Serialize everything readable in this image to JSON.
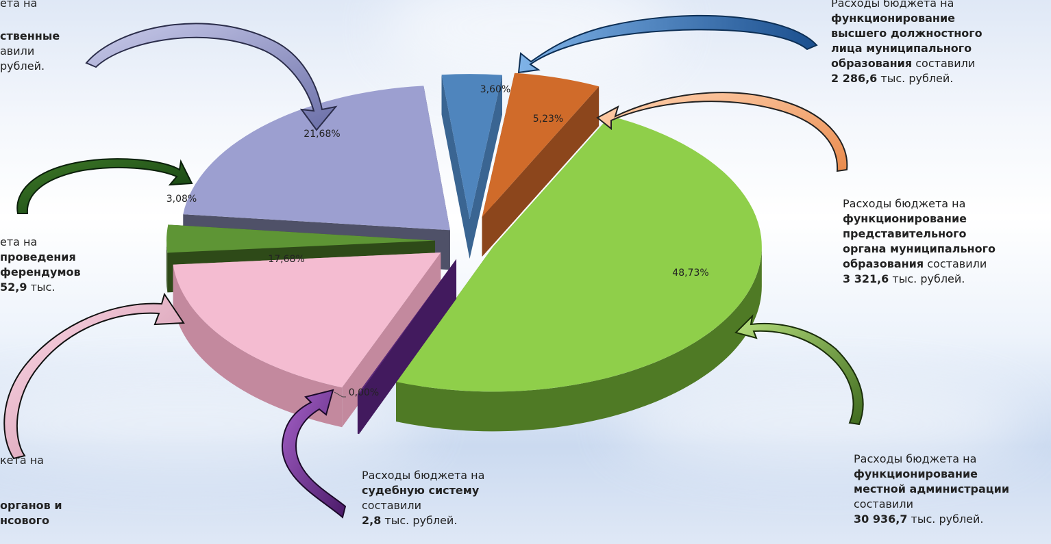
{
  "chart_data": {
    "type": "pie",
    "variant": "3d-exploded",
    "slices": [
      {
        "label": "3,60%",
        "value": 3.6,
        "color": "#4f85bd",
        "side": "#3a6592"
      },
      {
        "label": "5,23%",
        "value": 5.23,
        "color": "#d06b2a",
        "side": "#8c461c"
      },
      {
        "label": "48,73%",
        "value": 48.73,
        "color": "#8fcf4a",
        "side": "#4f7a25"
      },
      {
        "label": "0,00%",
        "value": 0.0,
        "color": "#5c2a7a",
        "side": "#421a5e"
      },
      {
        "label": "17,68%",
        "value": 17.68,
        "color": "#f4bcd1",
        "side": "#c3899e"
      },
      {
        "label": "3,08%",
        "value": 3.08,
        "color": "#5e9535",
        "side": "#2e4a18"
      },
      {
        "label": "21,68%",
        "value": 21.68,
        "color": "#9c9fd0",
        "side": "#4f5168"
      }
    ]
  },
  "annotations": {
    "top_left": {
      "line1": "ета на",
      "line2": "ственные",
      "line3": "авили",
      "line4": "рублей."
    },
    "top_right": {
      "line1": "Расходы бюджета на",
      "line2_bold": "функционирование",
      "line3_bold": "высшего должностного",
      "line4_bold": "лица муниципального",
      "line5_bold": "образования",
      "line5_rest": " составили",
      "line6_bold": "2 286,6",
      "line6_rest": " тыс. рублей."
    },
    "mid_right": {
      "line1": "Расходы бюджета на",
      "line2_bold": "функционирование",
      "line3_bold": "представительного",
      "line4_bold": "органа муниципального",
      "line5_bold": "образования",
      "line5_rest": " составили",
      "line6_bold": "3 321,6",
      "line6_rest": " тыс. рублей."
    },
    "mid_left": {
      "line1": "ета на",
      "line2_bold": "проведения",
      "line3_bold": "ферендумов",
      "line4_bold": "52,9",
      "line4_rest": " тыс."
    },
    "bottom_left": {
      "line1": "кета на",
      "line2_bold": "органов и",
      "line3_bold": "нсового"
    },
    "bottom_center": {
      "line1": "Расходы бюджета на",
      "line2_bold": "судебную систему",
      "line3": "составили",
      "line4_bold": "2,8",
      "line4_rest": " тыс. рублей."
    },
    "bottom_right": {
      "line1": "Расходы бюджета на",
      "line2_bold": "функционирование",
      "line3_bold": "местной администрации",
      "line4": "составили",
      "line5_bold": "30 936,7",
      "line5_rest": " тыс. рублей."
    }
  }
}
